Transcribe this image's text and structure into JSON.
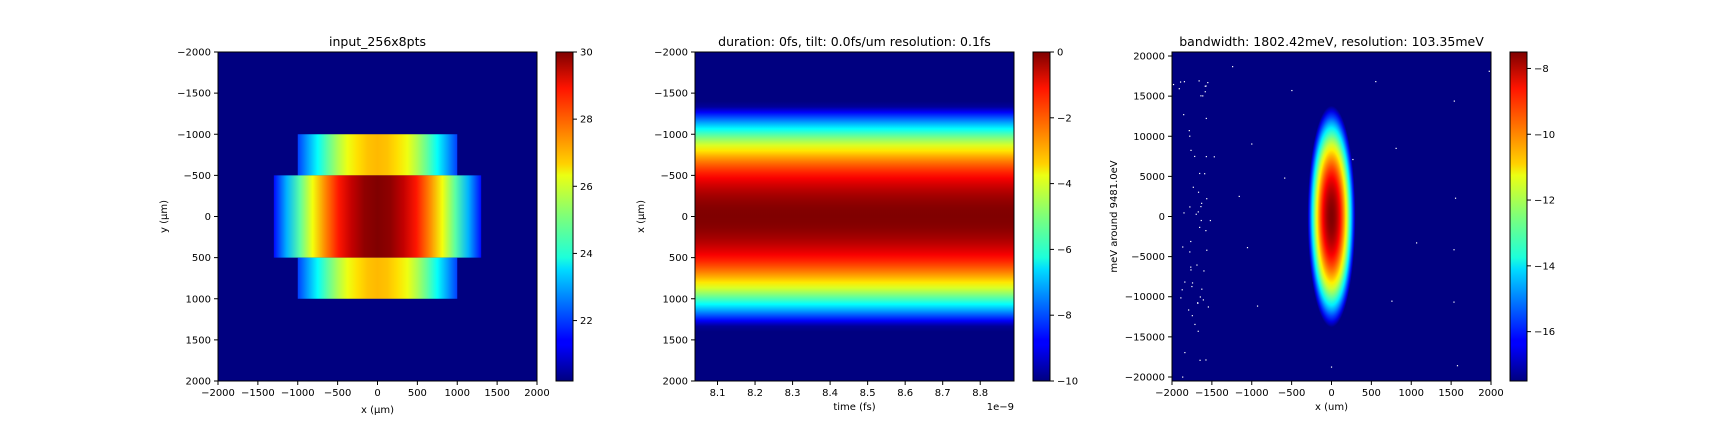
{
  "chart_data": [
    {
      "type": "heatmap",
      "title": "input_256x8pts",
      "xlabel": "x (μm)",
      "ylabel": "y (μm)",
      "xlim": [
        -2000,
        2000
      ],
      "ylim": [
        2000,
        -2000
      ],
      "xticks": [
        -2000,
        -1500,
        -1000,
        -500,
        0,
        500,
        1000,
        1500,
        2000
      ],
      "yticks": [
        -2000,
        -1500,
        -1000,
        -500,
        0,
        500,
        1000,
        1500,
        2000
      ],
      "xtick_labels": [
        "−2000",
        "−1500",
        "−1000",
        "−500",
        "0",
        "500",
        "1000",
        "1500",
        "2000"
      ],
      "ytick_labels": [
        "−2000",
        "−1500",
        "−1000",
        "−500",
        "0",
        "500",
        "1000",
        "1500",
        "2000"
      ],
      "colormap": "jet",
      "background_value": 20,
      "colorbar": {
        "range": [
          20.2,
          30
        ],
        "ticks": [
          22,
          24,
          26,
          28,
          30
        ],
        "tick_labels": [
          "22",
          "24",
          "26",
          "28",
          "30"
        ]
      },
      "regions": [
        {
          "y_range": [
            -1000,
            -500
          ],
          "x_range": [
            -1000,
            1000
          ],
          "value_range": [
            22,
            27
          ]
        },
        {
          "y_range": [
            -500,
            500
          ],
          "x_range": [
            -1300,
            1300
          ],
          "value_range": [
            21.5,
            30
          ]
        },
        {
          "y_range": [
            500,
            1000
          ],
          "x_range": [
            -1000,
            1000
          ],
          "value_range": [
            22,
            27
          ]
        }
      ]
    },
    {
      "type": "heatmap",
      "title": "duration: 0fs, tilt: 0.0fs/um resolution: 0.1fs",
      "xlabel": "time (fs)",
      "ylabel": "x (μm)",
      "x_offset_label": "1e−9",
      "xlim": [
        8.04,
        8.89
      ],
      "ylim": [
        2000,
        -2000
      ],
      "xticks": [
        8.1,
        8.2,
        8.3,
        8.4,
        8.5,
        8.6,
        8.7,
        8.8
      ],
      "xtick_labels": [
        "8.1",
        "8.2",
        "8.3",
        "8.4",
        "8.5",
        "8.6",
        "8.7",
        "8.8"
      ],
      "yticks": [
        -2000,
        -1500,
        -1000,
        -500,
        0,
        500,
        1000,
        1500,
        2000
      ],
      "ytick_labels": [
        "−2000",
        "−1500",
        "−1000",
        "−500",
        "0",
        "500",
        "1000",
        "1500",
        "2000"
      ],
      "colormap": "jet",
      "profile": {
        "shape": "gaussian-in-x",
        "peak": 0,
        "edge": -10,
        "half_width_at_floor": 1350
      },
      "colorbar": {
        "range": [
          -10,
          0
        ],
        "ticks": [
          0,
          -2,
          -4,
          -6,
          -8,
          -10
        ],
        "tick_labels": [
          "0",
          "−2",
          "−4",
          "−6",
          "−8",
          "−10"
        ]
      }
    },
    {
      "type": "heatmap",
      "title": "bandwidth: 1802.42meV, resolution: 103.35meV",
      "xlabel": "x (um)",
      "ylabel": "meV around 9481.0eV",
      "xlim": [
        -2000,
        2000
      ],
      "ylim": [
        -20500,
        20500
      ],
      "xticks": [
        -2000,
        -1500,
        -1000,
        -500,
        0,
        500,
        1000,
        1500,
        2000
      ],
      "xtick_labels": [
        "−2000",
        "−1500",
        "−1000",
        "−500",
        "0",
        "500",
        "1000",
        "1500",
        "2000"
      ],
      "yticks": [
        20000,
        15000,
        10000,
        5000,
        0,
        -5000,
        -10000,
        -15000,
        -20000
      ],
      "ytick_labels": [
        "20000",
        "15000",
        "10000",
        "5000",
        "0",
        "−5000",
        "−10000",
        "−15000",
        "−20000"
      ],
      "colormap": "jet",
      "profile": {
        "shape": "gaussian-2d",
        "center": [
          0,
          0
        ],
        "peak": -7.5,
        "floor": -17.5,
        "x_half_width_at_floor": 300,
        "y_half_width_at_floor": 13800
      },
      "speckle_note": "scattered white noise points",
      "colorbar": {
        "range": [
          -17.5,
          -7.5
        ],
        "ticks": [
          -8,
          -10,
          -12,
          -14,
          -16
        ],
        "tick_labels": [
          "−8",
          "−10",
          "−12",
          "−14",
          "−16"
        ]
      }
    }
  ]
}
